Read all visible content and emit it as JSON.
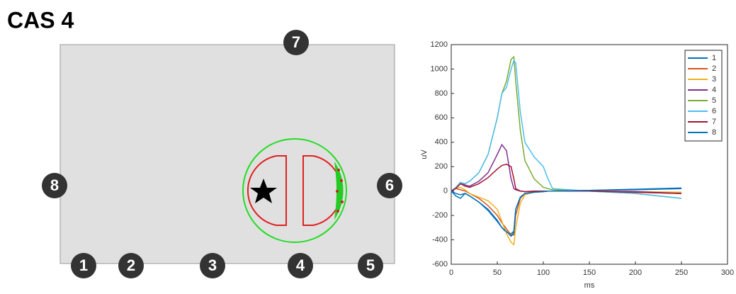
{
  "diagram": {
    "title": "CAS 4",
    "electrodes": [
      "1",
      "2",
      "3",
      "4",
      "5",
      "6",
      "7",
      "8"
    ]
  },
  "chart_data": {
    "type": "line",
    "xlabel": "ms",
    "ylabel": "uV",
    "x": [
      0,
      5,
      10,
      15,
      20,
      30,
      40,
      50,
      55,
      60,
      65,
      68,
      70,
      75,
      80,
      90,
      100,
      105,
      110,
      150,
      200,
      250
    ],
    "series": [
      {
        "name": "1",
        "color": "#0072BD",
        "values": [
          0,
          -40,
          -60,
          -20,
          -40,
          -90,
          -160,
          -250,
          -300,
          -340,
          -350,
          -330,
          -150,
          -50,
          -20,
          -10,
          -5,
          0,
          0,
          5,
          10,
          20
        ]
      },
      {
        "name": "2",
        "color": "#D95319",
        "values": [
          0,
          20,
          10,
          0,
          -20,
          -60,
          -120,
          -200,
          -260,
          -310,
          -360,
          -360,
          -200,
          -60,
          -20,
          -10,
          -5,
          0,
          0,
          0,
          -10,
          -20
        ]
      },
      {
        "name": "3",
        "color": "#EDB120",
        "values": [
          0,
          20,
          30,
          10,
          -20,
          -50,
          -80,
          -150,
          -250,
          -350,
          -420,
          -440,
          -300,
          -100,
          -30,
          -10,
          -5,
          0,
          0,
          0,
          -5,
          -10
        ]
      },
      {
        "name": "4",
        "color": "#7E2F8E",
        "values": [
          0,
          30,
          70,
          50,
          40,
          80,
          150,
          300,
          380,
          330,
          100,
          20,
          10,
          0,
          -5,
          -5,
          0,
          0,
          0,
          0,
          -5,
          -20
        ]
      },
      {
        "name": "5",
        "color": "#77AC30",
        "values": [
          0,
          30,
          70,
          60,
          80,
          150,
          300,
          600,
          800,
          900,
          1080,
          1100,
          900,
          500,
          250,
          100,
          30,
          20,
          10,
          0,
          -20,
          -60
        ]
      },
      {
        "name": "6",
        "color": "#4DBEEE",
        "values": [
          0,
          30,
          70,
          60,
          80,
          150,
          300,
          600,
          800,
          850,
          1000,
          1070,
          1050,
          650,
          400,
          280,
          200,
          100,
          20,
          0,
          -20,
          -60
        ]
      },
      {
        "name": "7",
        "color": "#A2142F",
        "values": [
          0,
          20,
          60,
          40,
          30,
          60,
          110,
          180,
          210,
          220,
          200,
          100,
          20,
          0,
          -5,
          0,
          0,
          0,
          0,
          0,
          -10,
          -20
        ]
      },
      {
        "name": "8",
        "color": "#0072BD",
        "values": [
          0,
          -20,
          -30,
          -20,
          -40,
          -90,
          -150,
          -240,
          -300,
          -330,
          -370,
          -340,
          -150,
          -50,
          -20,
          -10,
          -5,
          0,
          0,
          5,
          15,
          25
        ]
      }
    ],
    "xlim": [
      0,
      300
    ],
    "ylim": [
      -600,
      1200
    ],
    "xticks": [
      0,
      50,
      100,
      150,
      200,
      250,
      300
    ],
    "yticks": [
      -600,
      -400,
      -200,
      0,
      200,
      400,
      600,
      800,
      1000,
      1200
    ],
    "legend": "top-right"
  }
}
